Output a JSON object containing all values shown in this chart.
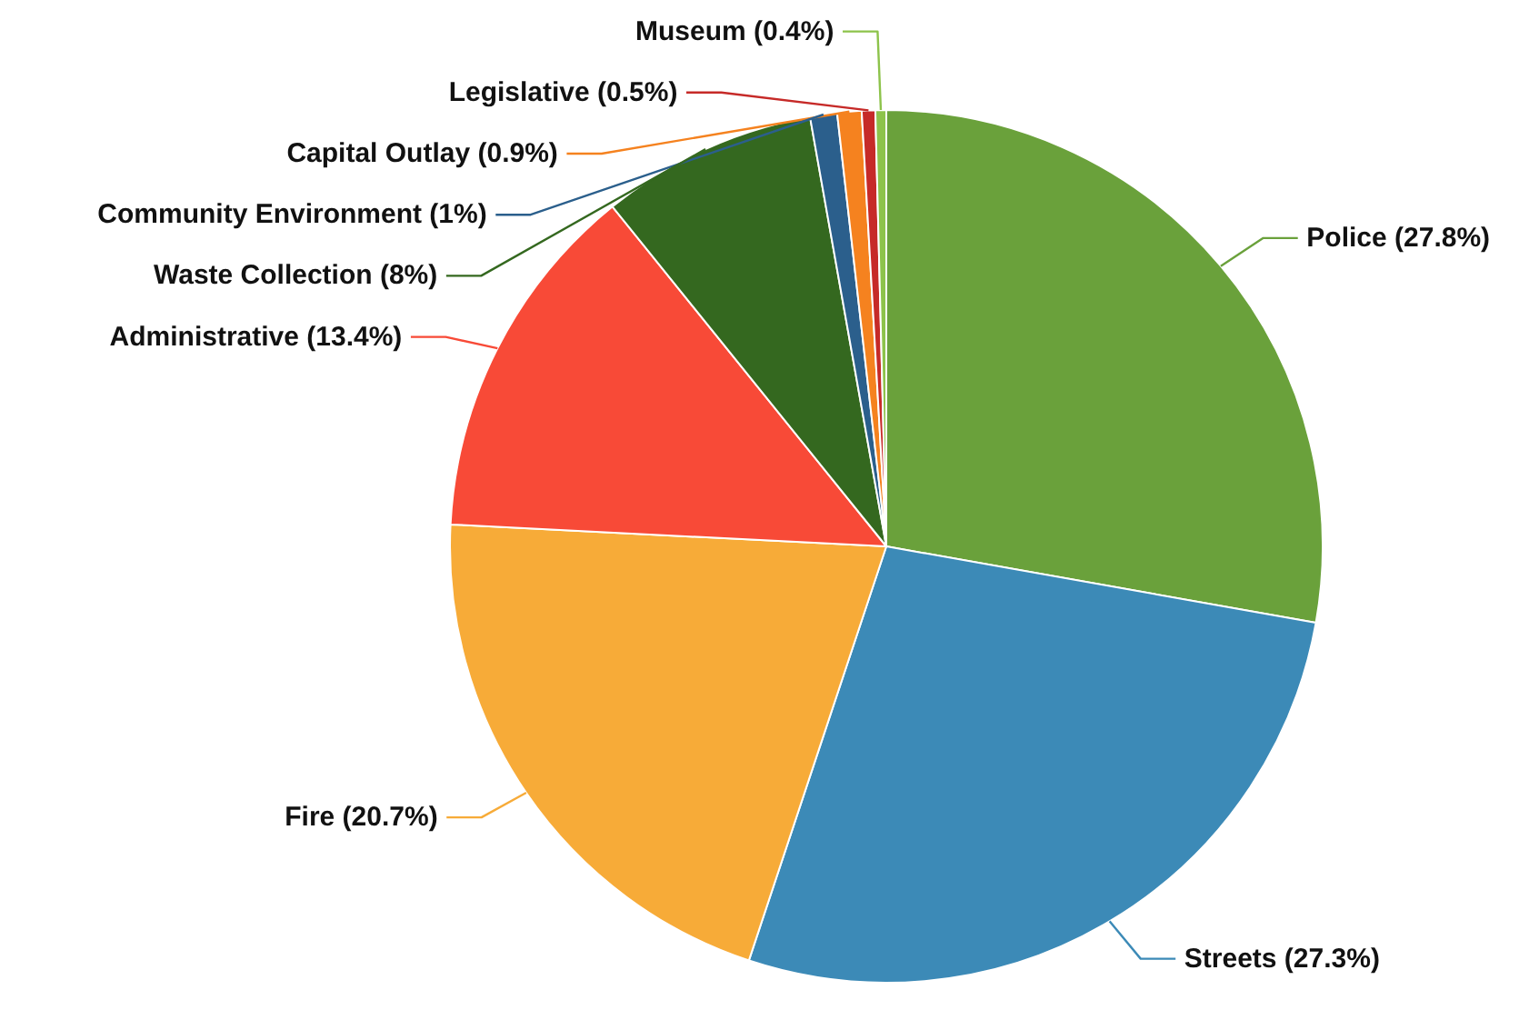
{
  "chart_data": {
    "type": "pie",
    "categories": [
      "Police",
      "Streets",
      "Fire",
      "Administrative",
      "Waste Collection",
      "Community Environment",
      "Capital Outlay",
      "Legislative",
      "Museum"
    ],
    "values": [
      27.8,
      27.3,
      20.7,
      13.4,
      8,
      1,
      0.9,
      0.5,
      0.4
    ],
    "value_labels": [
      "(27.8%)",
      "(27.3%)",
      "(20.7%)",
      "(13.4%)",
      "(8%)",
      "(1%)",
      "(0.9%)",
      "(0.5%)",
      "(0.4%)"
    ],
    "colors": [
      "#6aa13b",
      "#3c8ab7",
      "#f7ab38",
      "#f84a37",
      "#34681f",
      "#2b5f8c",
      "#f5821f",
      "#c62a28",
      "#8dc34b"
    ]
  }
}
